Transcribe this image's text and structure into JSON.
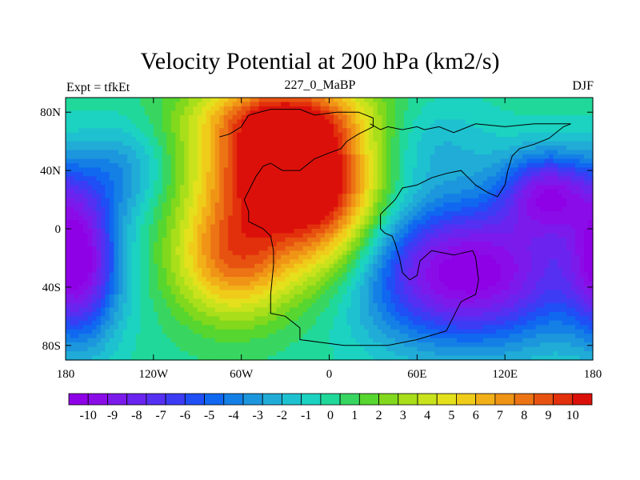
{
  "title": "Velocity Potential at 200 hPa (km2/s)",
  "left_label": "Expt = tfkEt",
  "center_label": "227_0_MaBP",
  "right_label": "DJF",
  "map": {
    "lon_range": [
      -180,
      180
    ],
    "lat_range": [
      -90,
      90
    ],
    "x_ticks": [
      {
        "value": -180,
        "label": "180"
      },
      {
        "value": -120,
        "label": "120W"
      },
      {
        "value": -60,
        "label": "60W"
      },
      {
        "value": 0,
        "label": "0"
      },
      {
        "value": 60,
        "label": "60E"
      },
      {
        "value": 120,
        "label": "120E"
      },
      {
        "value": 180,
        "label": "180"
      }
    ],
    "y_ticks": [
      {
        "value": 80,
        "label": "80N"
      },
      {
        "value": 40,
        "label": "40N"
      },
      {
        "value": 0,
        "label": "0"
      },
      {
        "value": -40,
        "label": "40S"
      },
      {
        "value": -80,
        "label": "80S"
      }
    ],
    "field_centers": [
      {
        "lon": -35,
        "lat": 45,
        "value": 11,
        "sx": 38,
        "sy": 32
      },
      {
        "lon": -65,
        "lat": -20,
        "value": 8,
        "sx": 30,
        "sy": 30
      },
      {
        "lon": 0,
        "lat": 10,
        "value": 7,
        "sx": 28,
        "sy": 38
      },
      {
        "lon": -30,
        "lat": 80,
        "value": 5,
        "sx": 45,
        "sy": 18
      },
      {
        "lon": 95,
        "lat": -30,
        "value": -11,
        "sx": 55,
        "sy": 35
      },
      {
        "lon": 150,
        "lat": 25,
        "value": -8,
        "sx": 22,
        "sy": 20
      },
      {
        "lon": -170,
        "lat": -20,
        "value": -9,
        "sx": 18,
        "sy": 38
      },
      {
        "lon": -140,
        "lat": 40,
        "value": -3,
        "sx": 20,
        "sy": 22
      },
      {
        "lon": 70,
        "lat": 60,
        "value": -2,
        "sx": 30,
        "sy": 22
      }
    ],
    "coastline": [
      [
        [
          -75,
          63
        ],
        [
          -68,
          65
        ],
        [
          -60,
          70
        ],
        [
          -55,
          78
        ],
        [
          -40,
          82
        ],
        [
          -20,
          82
        ],
        [
          -10,
          78
        ],
        [
          5,
          80
        ],
        [
          20,
          80
        ],
        [
          30,
          76
        ],
        [
          30,
          70
        ],
        [
          20,
          65
        ],
        [
          12,
          60
        ],
        [
          8,
          55
        ],
        [
          0,
          52
        ],
        [
          -10,
          48
        ],
        [
          -15,
          44
        ],
        [
          -20,
          40
        ],
        [
          -32,
          40
        ],
        [
          -40,
          45
        ],
        [
          -45,
          43
        ],
        [
          -50,
          36
        ],
        [
          -58,
          20
        ],
        [
          -55,
          12
        ],
        [
          -55,
          5
        ],
        [
          -45,
          0
        ],
        [
          -40,
          -5
        ],
        [
          -38,
          -15
        ],
        [
          -38,
          -25
        ],
        [
          -40,
          -45
        ],
        [
          -40,
          -58
        ],
        [
          -30,
          -60
        ],
        [
          -20,
          -68
        ],
        [
          -20,
          -76
        ],
        [
          10,
          -80
        ],
        [
          40,
          -80
        ],
        [
          60,
          -76
        ],
        [
          80,
          -70
        ],
        [
          85,
          -60
        ],
        [
          90,
          -50
        ],
        [
          100,
          -45
        ],
        [
          102,
          -35
        ],
        [
          100,
          -20
        ],
        [
          98,
          -15
        ],
        [
          85,
          -18
        ],
        [
          70,
          -15
        ],
        [
          62,
          -22
        ],
        [
          60,
          -32
        ],
        [
          55,
          -35
        ],
        [
          50,
          -30
        ],
        [
          48,
          -20
        ],
        [
          45,
          -10
        ],
        [
          43,
          -5
        ],
        [
          38,
          -3
        ],
        [
          35,
          0
        ],
        [
          35,
          10
        ],
        [
          40,
          15
        ],
        [
          45,
          20
        ],
        [
          50,
          28
        ],
        [
          60,
          30
        ],
        [
          70,
          35
        ],
        [
          80,
          38
        ],
        [
          90,
          40
        ],
        [
          95,
          35
        ],
        [
          100,
          30
        ],
        [
          108,
          25
        ],
        [
          115,
          22
        ],
        [
          120,
          30
        ],
        [
          122,
          40
        ],
        [
          125,
          50
        ],
        [
          130,
          55
        ],
        [
          140,
          58
        ],
        [
          150,
          62
        ],
        [
          160,
          70
        ],
        [
          165,
          72
        ],
        [
          140,
          72
        ],
        [
          120,
          70
        ],
        [
          100,
          72
        ],
        [
          90,
          68
        ],
        [
          85,
          66
        ],
        [
          75,
          70
        ],
        [
          65,
          68
        ],
        [
          60,
          70
        ],
        [
          50,
          68
        ],
        [
          40,
          70
        ],
        [
          35,
          68
        ],
        [
          28,
          72
        ]
      ]
    ]
  },
  "colorbar": {
    "labels": [
      "-10",
      "-9",
      "-8",
      "-7",
      "-6",
      "-5",
      "-4",
      "-3",
      "-2",
      "-1",
      "0",
      "1",
      "2",
      "3",
      "4",
      "5",
      "6",
      "7",
      "8",
      "9",
      "10"
    ],
    "colors": [
      "#8e00e6",
      "#8a0de8",
      "#7c1aeb",
      "#6b24ef",
      "#5530f2",
      "#3c3cf5",
      "#1f4ff5",
      "#1068f0",
      "#1480e6",
      "#1c96dc",
      "#20acd6",
      "#1ec1d0",
      "#1cd2c0",
      "#20d89a",
      "#38d660",
      "#56d62e",
      "#82d81c",
      "#a8de1a",
      "#c8e21c",
      "#e4e01c",
      "#f0cc1a",
      "#f2b018",
      "#f09416",
      "#ec7414",
      "#e85210",
      "#e2300c",
      "#dc100a"
    ]
  }
}
